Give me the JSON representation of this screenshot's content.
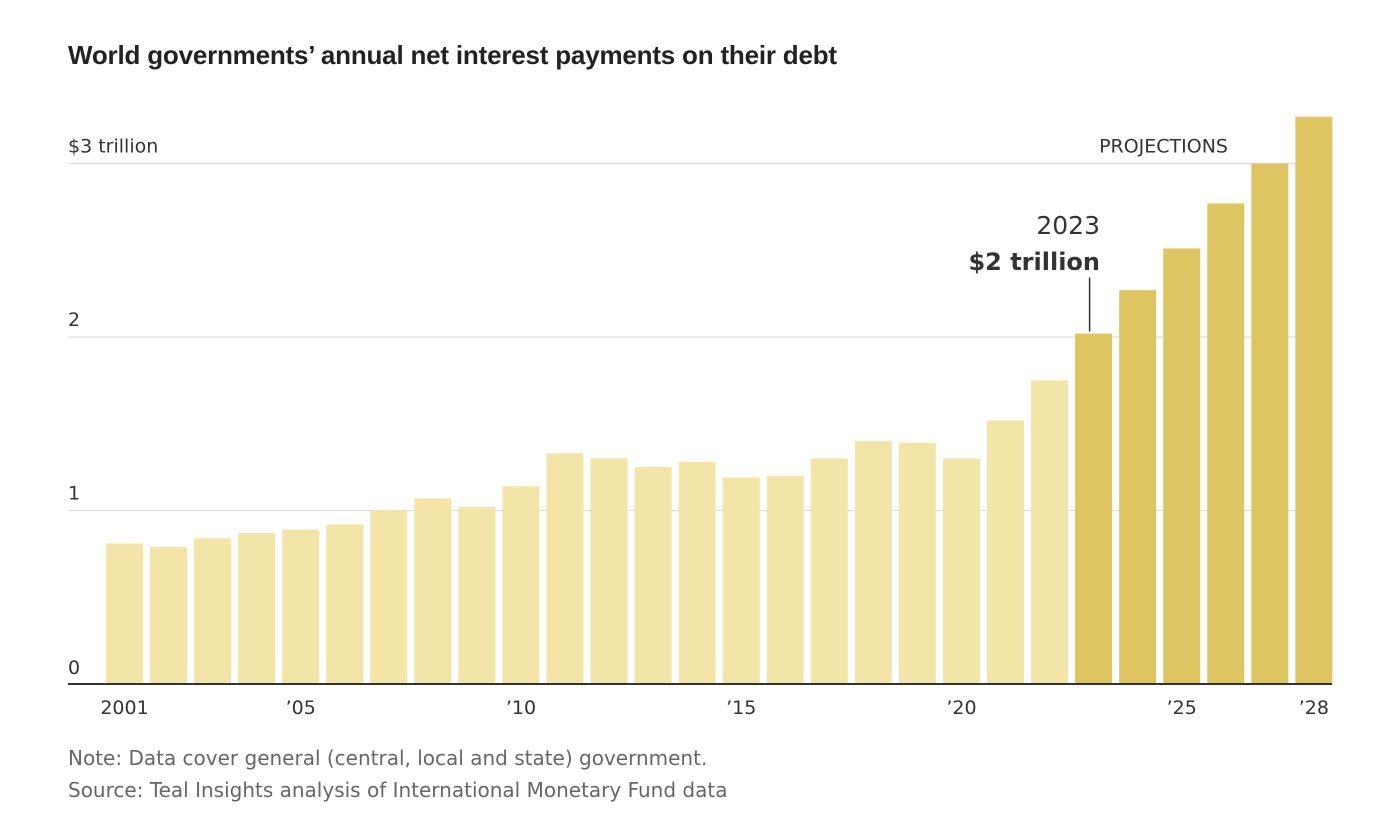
{
  "title": "World governments’ annual net interest payments on their debt",
  "note": "Note: Data cover general (central, local and state) government.",
  "source": "Source: Teal Insights analysis of International Monetary Fund data",
  "colors": {
    "actual": "#f3e4a8",
    "projection": "#dfc462",
    "axis": "#333333",
    "grid": "#dddddd",
    "text": "#333333"
  },
  "chart_data": {
    "type": "bar",
    "categories": [
      "2001",
      "2002",
      "2003",
      "2004",
      "2005",
      "2006",
      "2007",
      "2008",
      "2009",
      "2010",
      "2011",
      "2012",
      "2013",
      "2014",
      "2015",
      "2016",
      "2017",
      "2018",
      "2019",
      "2020",
      "2021",
      "2022",
      "2023",
      "2024",
      "2025",
      "2026",
      "2027",
      "2028"
    ],
    "values": [
      0.81,
      0.79,
      0.84,
      0.87,
      0.89,
      0.92,
      1.0,
      1.07,
      1.02,
      1.14,
      1.33,
      1.3,
      1.25,
      1.28,
      1.19,
      1.2,
      1.3,
      1.4,
      1.39,
      1.3,
      1.52,
      1.75,
      2.02,
      2.27,
      2.51,
      2.77,
      3.0,
      3.27
    ],
    "projection_start_index": 22,
    "projection_label": "PROJECTIONS",
    "ylim": [
      0,
      3.27
    ],
    "yticks": [
      {
        "value": 0,
        "label": "0"
      },
      {
        "value": 1,
        "label": "1"
      },
      {
        "value": 2,
        "label": "2"
      },
      {
        "value": 3,
        "label": "$3 trillion"
      }
    ],
    "xticks": [
      {
        "index": 0,
        "label": "2001"
      },
      {
        "index": 4,
        "label": "’05"
      },
      {
        "index": 9,
        "label": "’10"
      },
      {
        "index": 14,
        "label": "’15"
      },
      {
        "index": 19,
        "label": "’20"
      },
      {
        "index": 24,
        "label": "’25"
      },
      {
        "index": 27,
        "label": "’28"
      }
    ],
    "annotation": {
      "index": 22,
      "line1": "2023",
      "line2": "$2 trillion"
    }
  }
}
